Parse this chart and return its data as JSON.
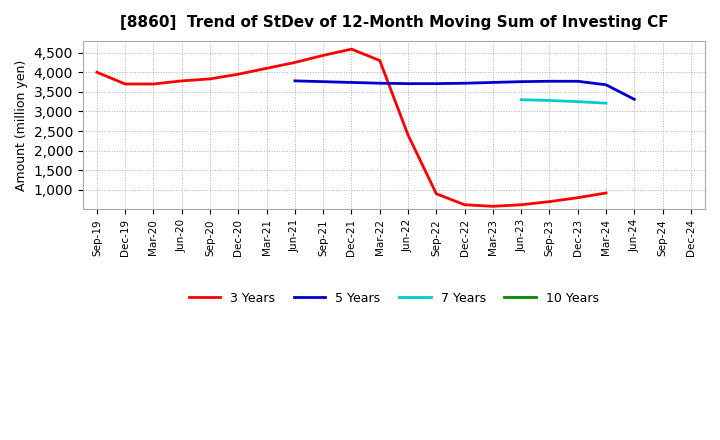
{
  "title": "[8860]  Trend of StDev of 12-Month Moving Sum of Investing CF",
  "ylabel": "Amount (million yen)",
  "background_color": "#ffffff",
  "plot_bg_color": "#ffffff",
  "grid_color": "#aaaaaa",
  "ylim": [
    500,
    4800
  ],
  "yticks": [
    1000,
    1500,
    2000,
    2500,
    3000,
    3500,
    4000,
    4500
  ],
  "x_labels": [
    "Sep-19",
    "Dec-19",
    "Mar-20",
    "Jun-20",
    "Sep-20",
    "Dec-20",
    "Mar-21",
    "Jun-21",
    "Sep-21",
    "Dec-21",
    "Mar-22",
    "Jun-22",
    "Sep-22",
    "Dec-22",
    "Mar-23",
    "Jun-23",
    "Sep-23",
    "Dec-23",
    "Mar-24",
    "Jun-24",
    "Sep-24",
    "Dec-24"
  ],
  "series_3y": {
    "label": "3 Years",
    "color": "#ff0000",
    "x": [
      0,
      1,
      2,
      3,
      4,
      5,
      6,
      7,
      8,
      9,
      10,
      11,
      12,
      13,
      14,
      15,
      16,
      17,
      18
    ],
    "y": [
      4000,
      3700,
      3700,
      3780,
      3830,
      3950,
      4100,
      4250,
      4430,
      4590,
      4300,
      2400,
      900,
      620,
      580,
      620,
      700,
      800,
      920
    ]
  },
  "series_5y": {
    "label": "5 Years",
    "color": "#0000cc",
    "x": [
      7,
      8,
      9,
      10,
      11,
      12,
      13,
      14,
      15,
      16,
      17,
      18,
      19
    ],
    "y": [
      3780,
      3760,
      3740,
      3720,
      3710,
      3710,
      3720,
      3740,
      3760,
      3770,
      3770,
      3680,
      3310
    ]
  },
  "series_7y": {
    "label": "7 Years",
    "color": "#00cccc",
    "x": [
      15,
      16,
      17,
      18
    ],
    "y": [
      3300,
      3280,
      3250,
      3210
    ]
  },
  "series_10y": {
    "label": "10 Years",
    "color": "#008800",
    "x": [],
    "y": []
  }
}
